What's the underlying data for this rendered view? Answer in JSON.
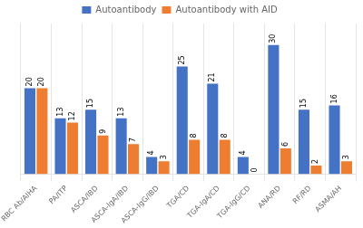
{
  "chart_data": {
    "type": "bar",
    "categories": [
      "RBC Ab/AIHA",
      "PA/ITP",
      "ASCA/IBD",
      "ASCA-IgA/IBD",
      "ASCA-IgG/IBD",
      "TGA/CD",
      "TGA-IgA/CD",
      "TGA-IgG/CD",
      "ANA/RD",
      "RF/RD",
      "ASMA/AH"
    ],
    "series": [
      {
        "name": "Autoantibody",
        "color": "#4472c4",
        "values": [
          20,
          13,
          15,
          13,
          4,
          25,
          21,
          4,
          30,
          15,
          16
        ]
      },
      {
        "name": "Autoantibody with AID",
        "color": "#ed7d31",
        "values": [
          20,
          12,
          9,
          7,
          3,
          8,
          8,
          0,
          6,
          2,
          3
        ]
      }
    ],
    "ylim": [
      0,
      35
    ],
    "grid": true,
    "legend": "top",
    "data_labels": true,
    "tick_labels": "x"
  }
}
